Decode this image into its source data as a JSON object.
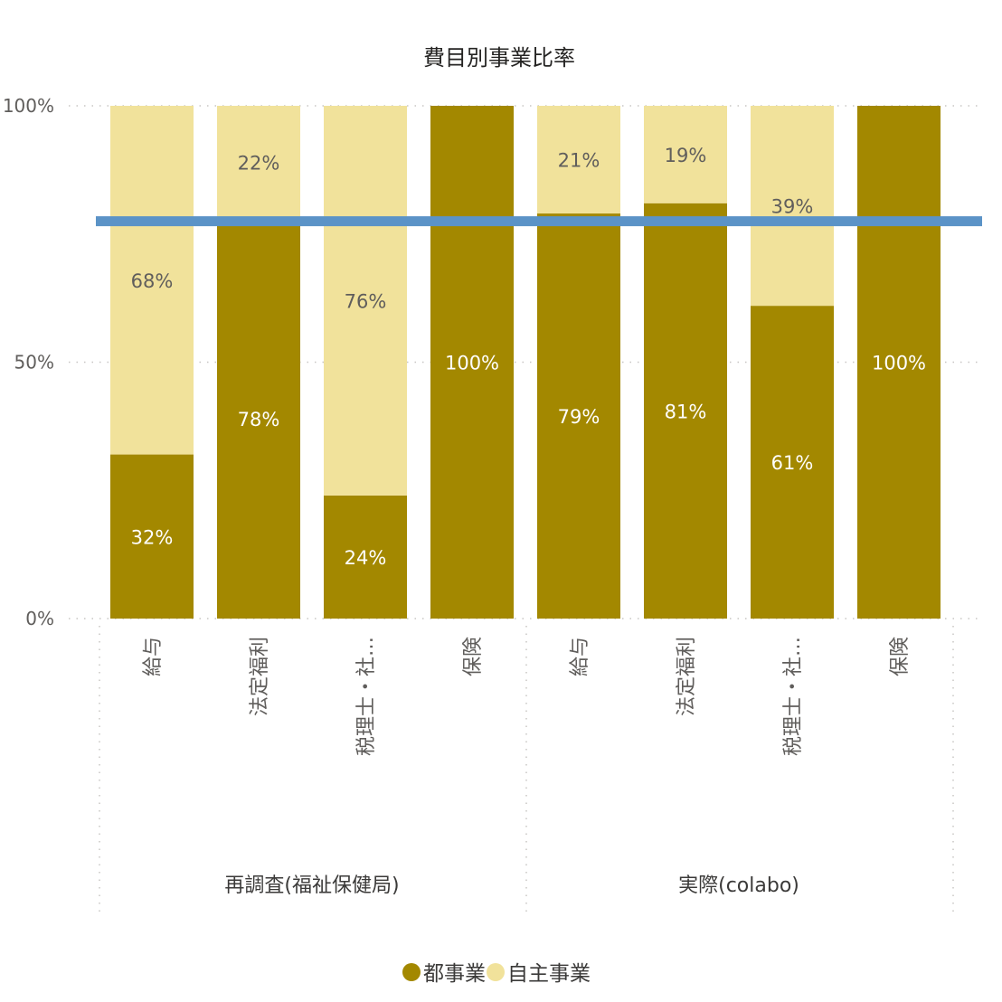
{
  "chart_data": {
    "type": "bar",
    "stacked": "100%",
    "title": "費目別事業比率",
    "yticks": [
      "100%",
      "50%",
      "0%"
    ],
    "ylim": [
      0,
      100
    ],
    "grid": true,
    "legend_position": "bottom-center",
    "groups": [
      {
        "label": "再調査(福祉保健局)",
        "categories": [
          "給与",
          "法定福利",
          "税理士・社…",
          "保険"
        ]
      },
      {
        "label": "実際(colabo)",
        "categories": [
          "給与",
          "法定福利",
          "税理士・社…",
          "保険"
        ]
      }
    ],
    "series": [
      {
        "name": "都事業",
        "color": "#a38800",
        "values": [
          32,
          78,
          24,
          100,
          79,
          81,
          61,
          100
        ],
        "labels": [
          "32%",
          "78%",
          "24%",
          "100%",
          "79%",
          "81%",
          "61%",
          "100%"
        ]
      },
      {
        "name": "自主事業",
        "color": "#f1e29b",
        "values": [
          68,
          22,
          76,
          0,
          21,
          19,
          39,
          0
        ],
        "labels": [
          "68%",
          "22%",
          "76%",
          "",
          "21%",
          "19%",
          "39%",
          ""
        ]
      }
    ],
    "reference_line": {
      "value": 77.5,
      "color": "#5b93c7"
    }
  }
}
